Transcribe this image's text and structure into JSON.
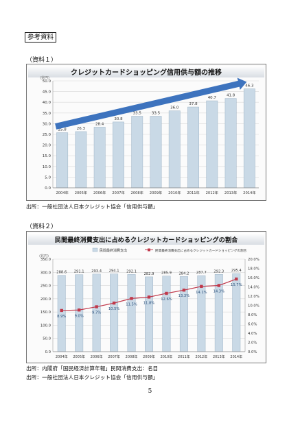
{
  "header": {
    "ref_label": "参考資料"
  },
  "sections": [
    {
      "label": "（資料１）",
      "source": "出所：一般社団法人日本クレジット協会「信用供与額」"
    },
    {
      "label": "（資料２）",
      "source_1": "出所：内閣府「国民経済計算年報」民間消費支出：名目",
      "source_2": "出所：一般社団法人日本クレジット協会「信用供与額」"
    }
  ],
  "page_number": "5",
  "colors": {
    "bar": "#c9d9e6",
    "bar_edge": "#9db3c6",
    "arrow": "#2c67b8",
    "line": "#c0394b"
  },
  "chart_data": [
    {
      "type": "bar",
      "title": "クレジットカードショッピング信用供与額の推移",
      "unit_label": "(兆円)",
      "categories": [
        "2004年",
        "2005年",
        "2006年",
        "2007年",
        "2008年",
        "2009年",
        "2010年",
        "2011年",
        "2012年",
        "2013年",
        "2014年"
      ],
      "values": [
        25.8,
        26.3,
        28.4,
        30.8,
        33.5,
        33.5,
        36.0,
        37.8,
        40.7,
        41.8,
        46.3
      ],
      "value_labels": [
        "25.8",
        "26.3",
        "28.4",
        "30.8",
        "33.5",
        "33.5",
        "36.0",
        "37.8",
        "40.7",
        "41.8",
        "46.3"
      ],
      "ylim": [
        0,
        50
      ],
      "yticks": [
        "0.0",
        "5.0",
        "10.0",
        "15.0",
        "20.0",
        "25.0",
        "30.0",
        "35.0",
        "40.0",
        "45.0",
        "50.0"
      ],
      "trend_arrow": true,
      "grid": true
    },
    {
      "type": "bar",
      "title": "民間最終消費支出に占めるクレジットカードショッピングの割合",
      "unit_label": "(兆円)",
      "categories": [
        "2004年",
        "2005年",
        "2006年",
        "2007年",
        "2008年",
        "2009年",
        "2010年",
        "2011年",
        "2012年",
        "2013年",
        "2014年"
      ],
      "series": [
        {
          "name": "民間最終消費支出",
          "type": "bar",
          "values": [
            288.6,
            291.1,
            293.4,
            294.1,
            292.1,
            282.9,
            285.9,
            284.2,
            287.7,
            292.3,
            295.4
          ],
          "value_labels": [
            "288.6",
            "291.1",
            "293.4",
            "294.1",
            "292.1",
            "282.9",
            "285.9",
            "284.2",
            "287.7",
            "292.3",
            "295.4"
          ]
        },
        {
          "name": "民間最終消費支出に占めるクレジットカードショッピングの割合",
          "type": "line",
          "axis": "right",
          "values": [
            8.9,
            9.0,
            9.7,
            10.5,
            11.5,
            11.8,
            12.6,
            13.3,
            14.1,
            14.3,
            15.7
          ],
          "value_labels": [
            "8.9%",
            "9.0%",
            "9.7%",
            "10.5%",
            "11.5%",
            "11.8%",
            "12.6%",
            "13.3%",
            "14.1%",
            "14.3%",
            "15.7%"
          ]
        }
      ],
      "ylim": [
        0,
        350
      ],
      "yticks": [
        "0.0",
        "50.0",
        "100.0",
        "150.0",
        "200.0",
        "250.0",
        "300.0",
        "350.0"
      ],
      "y2lim": [
        0,
        20
      ],
      "y2ticks": [
        "0.0%",
        "2.0%",
        "4.0%",
        "6.0%",
        "8.0%",
        "10.0%",
        "12.0%",
        "14.0%",
        "16.0%",
        "18.0%",
        "20.0%"
      ],
      "legend": "top",
      "grid": true
    }
  ]
}
